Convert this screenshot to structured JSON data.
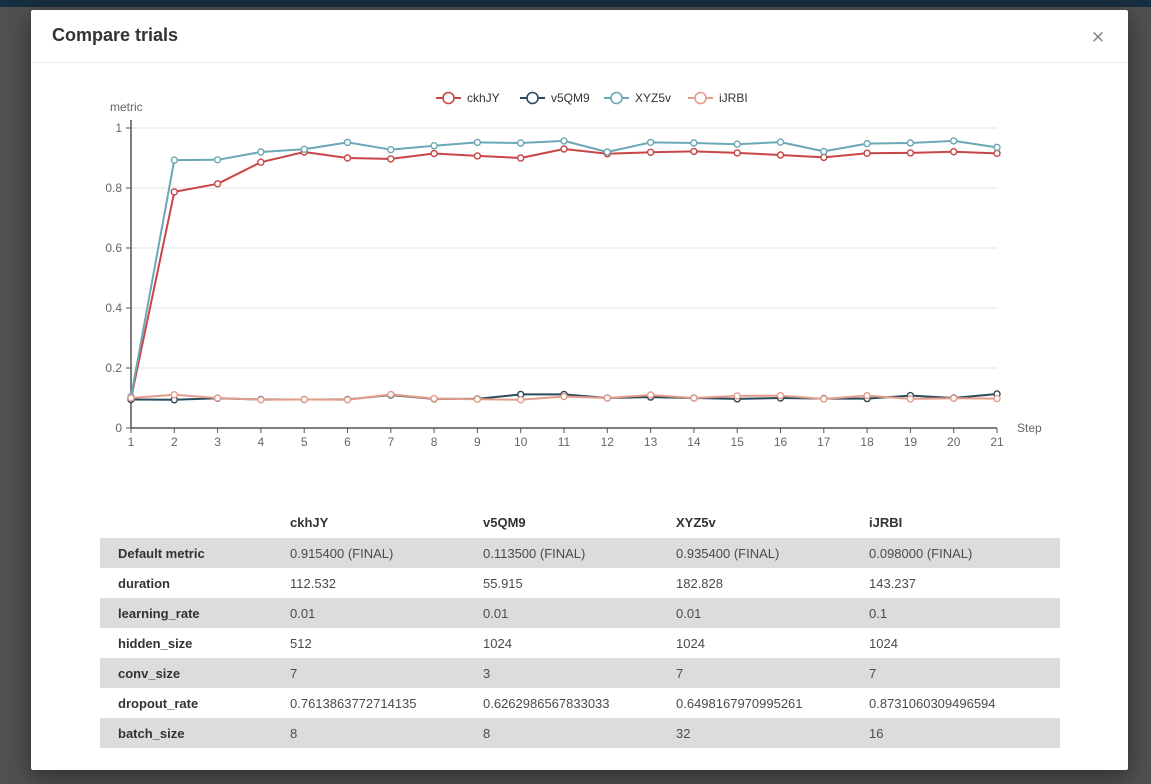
{
  "modal": {
    "title": "Compare trials",
    "close_icon": "✕"
  },
  "chart_data": {
    "type": "line",
    "title": "",
    "ylabel": "metric",
    "xlabel": "Step",
    "x": [
      1,
      2,
      3,
      4,
      5,
      6,
      7,
      8,
      9,
      10,
      11,
      12,
      13,
      14,
      15,
      16,
      17,
      18,
      19,
      20,
      21
    ],
    "ylim": [
      0,
      1
    ],
    "yticks": [
      0,
      0.2,
      0.4,
      0.6,
      0.8,
      1
    ],
    "grid": true,
    "legend_position": "top-center",
    "marker": "open-circle",
    "axis_color": "#555555",
    "grid_color": "#e0e0e0",
    "tick_label_color": "#666666",
    "series": [
      {
        "name": "ckhJY",
        "color": "#c94546",
        "values": [
          0.098,
          0.787,
          0.814,
          0.886,
          0.92,
          0.9,
          0.897,
          0.915,
          0.907,
          0.9,
          0.93,
          0.914,
          0.919,
          0.922,
          0.917,
          0.91,
          0.902,
          0.916,
          0.917,
          0.921,
          0.9154
        ]
      },
      {
        "name": "v5QM9",
        "color": "#2d4a5d",
        "values": [
          0.095,
          0.094,
          0.099,
          0.095,
          0.095,
          0.095,
          0.11,
          0.097,
          0.097,
          0.112,
          0.112,
          0.1,
          0.103,
          0.1,
          0.097,
          0.1,
          0.098,
          0.098,
          0.108,
          0.1,
          0.1135
        ]
      },
      {
        "name": "XYZ5v",
        "color": "#6ba8b6",
        "values": [
          0.104,
          0.893,
          0.894,
          0.92,
          0.929,
          0.952,
          0.928,
          0.941,
          0.952,
          0.95,
          0.957,
          0.92,
          0.952,
          0.95,
          0.946,
          0.953,
          0.922,
          0.948,
          0.95,
          0.957,
          0.9354
        ]
      },
      {
        "name": "iJRBI",
        "color": "#e59d8b",
        "values": [
          0.1,
          0.111,
          0.1,
          0.094,
          0.095,
          0.094,
          0.112,
          0.098,
          0.096,
          0.094,
          0.105,
          0.1,
          0.11,
          0.1,
          0.107,
          0.108,
          0.097,
          0.108,
          0.097,
          0.099,
          0.098
        ]
      }
    ]
  },
  "table": {
    "columns": [
      "",
      "ckhJY",
      "v5QM9",
      "XYZ5v",
      "iJRBI"
    ],
    "rows": [
      {
        "label": "Default metric",
        "values": [
          "0.915400 (FINAL)",
          "0.113500 (FINAL)",
          "0.935400 (FINAL)",
          "0.098000 (FINAL)"
        ]
      },
      {
        "label": "duration",
        "values": [
          "112.532",
          "55.915",
          "182.828",
          "143.237"
        ]
      },
      {
        "label": "learning_rate",
        "values": [
          "0.01",
          "0.01",
          "0.01",
          "0.1"
        ]
      },
      {
        "label": "hidden_size",
        "values": [
          "512",
          "1024",
          "1024",
          "1024"
        ]
      },
      {
        "label": "conv_size",
        "values": [
          "7",
          "3",
          "7",
          "7"
        ]
      },
      {
        "label": "dropout_rate",
        "values": [
          "0.7613863772714135",
          "0.6262986567833033",
          "0.6498167970995261",
          "0.8731060309496594"
        ]
      },
      {
        "label": "batch_size",
        "values": [
          "8",
          "8",
          "32",
          "16"
        ]
      }
    ]
  }
}
